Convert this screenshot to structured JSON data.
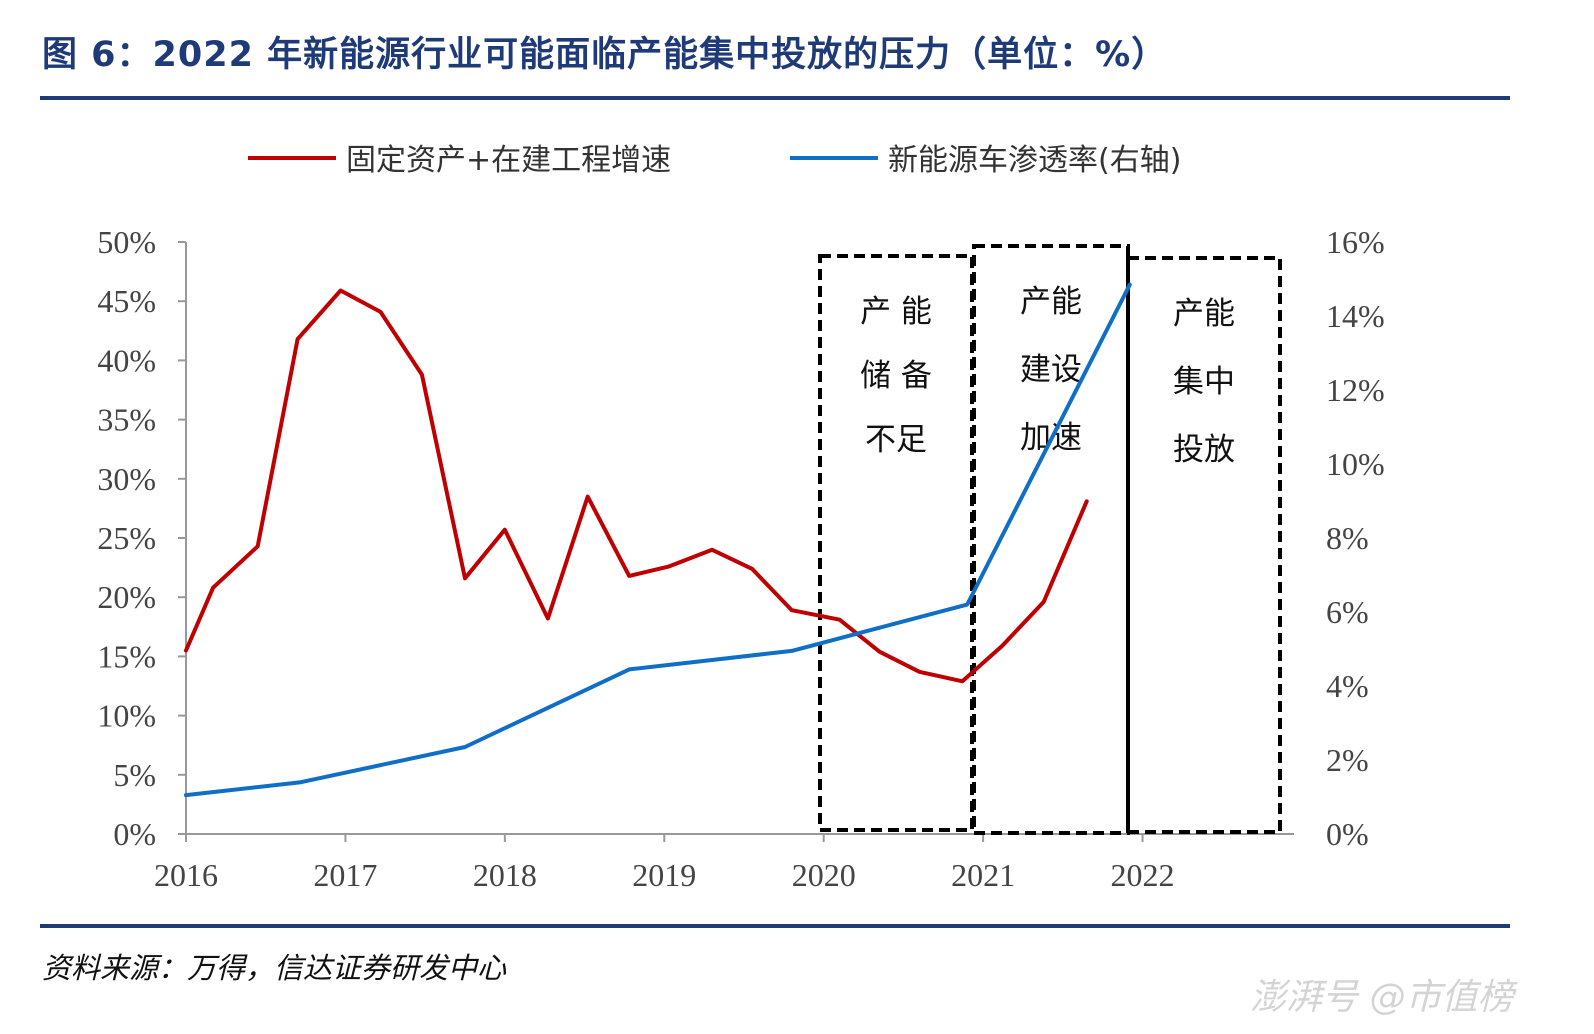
{
  "title": "图 6：2022 年新能源行业可能面临产能集中投放的压力（单位：%）",
  "source": "资料来源：万得，信达证券研发中心",
  "watermark": "澎湃号 @市值榜",
  "colors": {
    "red_series": "#c00000",
    "blue_series": "#0f6fc6",
    "rule": "#1f3a78"
  },
  "chart_data": {
    "type": "line",
    "title": "",
    "xlabel": "",
    "ylabel": "",
    "x_ticks": [
      "2016",
      "2017",
      "2018",
      "2019",
      "2020",
      "2021",
      "2022"
    ],
    "xlim": [
      2016,
      2022.95
    ],
    "ylim_left": [
      0,
      50
    ],
    "ylim_right": [
      0,
      16
    ],
    "y_ticks_left": [
      "0%",
      "5%",
      "10%",
      "15%",
      "20%",
      "25%",
      "30%",
      "35%",
      "40%",
      "45%",
      "50%"
    ],
    "y_ticks_right": [
      "0%",
      "2%",
      "4%",
      "6%",
      "8%",
      "10%",
      "12%",
      "14%",
      "16%"
    ],
    "legend_position": "top",
    "series": [
      {
        "name": "固定资产+在建工程增速",
        "axis": "left",
        "color": "#c00000",
        "x": [
          2016.0,
          2016.17,
          2016.45,
          2016.7,
          2016.97,
          2017.22,
          2017.48,
          2017.75,
          2018.0,
          2018.27,
          2018.52,
          2018.78,
          2019.03,
          2019.3,
          2019.55,
          2019.8,
          2020.1,
          2020.35,
          2020.6,
          2020.87,
          2021.12,
          2021.38,
          2021.65
        ],
        "values": [
          15.5,
          20.8,
          24.3,
          41.8,
          45.9,
          44.1,
          38.8,
          21.6,
          25.7,
          18.2,
          28.5,
          21.8,
          22.6,
          24.0,
          22.4,
          18.9,
          18.1,
          15.4,
          13.7,
          12.9,
          15.9,
          19.6,
          28.1
        ]
      },
      {
        "name": "新能源车渗透率(右轴)",
        "axis": "right",
        "color": "#0f6fc6",
        "x": [
          2016.0,
          2016.72,
          2017.75,
          2018.78,
          2019.8,
          2020.9,
          2021.92
        ],
        "values": [
          1.05,
          1.4,
          2.35,
          4.45,
          4.95,
          6.2,
          14.85
        ]
      }
    ],
    "annotations": [
      {
        "lines": [
          "产  能",
          "储  备",
          "不足"
        ]
      },
      {
        "lines": [
          "产能",
          "建设",
          "加速"
        ]
      },
      {
        "lines": [
          "产能",
          "集中",
          "投放"
        ]
      }
    ]
  }
}
